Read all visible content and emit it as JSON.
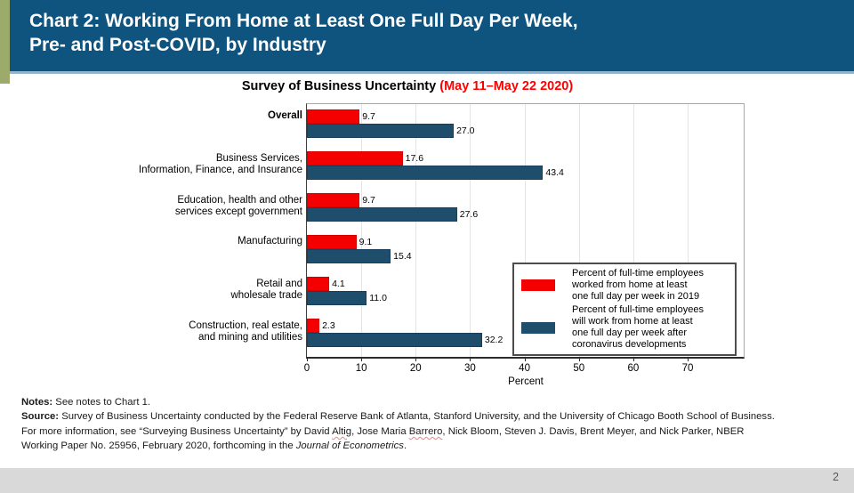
{
  "header": {
    "line1": "Chart 2: Working From Home at Least One Full Day Per Week,",
    "line2": "Pre- and Post-COVID, by Industry"
  },
  "chart_data": {
    "type": "bar",
    "orientation": "horizontal",
    "title": "Survey of Business Uncertainty",
    "title_paren": "(May 11–May 22 2020)",
    "title_paren_color": "#fe0000",
    "categories": [
      {
        "label_lines": [
          "Overall"
        ],
        "bold": true
      },
      {
        "label_lines": [
          "Business Services,",
          "Information, Finance, and Insurance"
        ]
      },
      {
        "label_lines": [
          "Education, health and other",
          "services except government"
        ]
      },
      {
        "label_lines": [
          "Manufacturing"
        ]
      },
      {
        "label_lines": [
          "Retail and",
          "wholesale trade"
        ]
      },
      {
        "label_lines": [
          "Construction, real estate,",
          "and mining and utilities"
        ]
      }
    ],
    "series": [
      {
        "name": "Percent of full-time employees worked from home at least one full day per week in 2019",
        "legend_lines": [
          "Percent of full-time employees",
          "worked from home at least",
          "one full day per week in 2019"
        ],
        "color": "#f40000",
        "values": [
          9.7,
          17.6,
          9.7,
          9.1,
          4.1,
          2.3
        ]
      },
      {
        "name": "Percent of full-time employees will work from home at least one full day per week after coronavirus developments",
        "legend_lines": [
          "Percent of full-time employees",
          "will work from home at least",
          "one full day per week after",
          "coronavirus developments"
        ],
        "color": "#1f4e6d",
        "values": [
          27.0,
          43.4,
          27.6,
          15.4,
          11.0,
          32.2
        ]
      }
    ],
    "xlabel": "Percent",
    "x_ticks": [
      0,
      10,
      20,
      30,
      40,
      50,
      60,
      70
    ],
    "xlim": [
      0,
      80.3
    ],
    "grid": true,
    "legend_position": "inside lower-right",
    "value_labels_shown": true
  },
  "notes": {
    "notes_label": "Notes:",
    "notes_rest": " See notes to Chart 1.",
    "source_label": "Source:",
    "source_rest": " Survey of Business Uncertainty conducted by the Federal Reserve Bank of Atlanta, Stanford University, and the University of Chicago Booth School of Business.",
    "info_p1": "For more information, see “Surveying Business Uncertainty” by David ",
    "info_name1": "Altig",
    "info_p2": ", Jose Maria ",
    "info_name2": "Barrero",
    "info_p3": ", Nick Bloom, Steven J. Davis, Brent Meyer, and Nick Parker, NBER",
    "info_line2_p1": "Working Paper No. 25956, February 2020, forthcoming in the ",
    "journal": "Journal of Econometrics",
    "info_line2_p2": "."
  },
  "footer": {
    "page_number": "2"
  },
  "colors": {
    "header_bg": "#0f547e",
    "header_underline": "#93b6d0",
    "accent_green": "#9cab6b",
    "footer_bg": "#d9d9d9",
    "series_2019_red": "#f40000",
    "series_post_navy": "#1f4e6d"
  }
}
